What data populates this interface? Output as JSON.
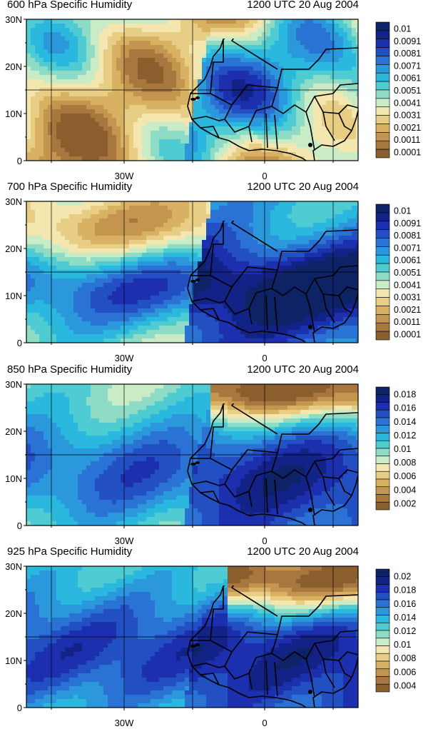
{
  "palette": [
    "#8b5e2e",
    "#a8773f",
    "#c4954f",
    "#d8b162",
    "#e8cd85",
    "#f3e6ae",
    "#c9ecc6",
    "#8fdcc6",
    "#4fccd2",
    "#2ab8df",
    "#2b98dc",
    "#2a72d3",
    "#2250c2",
    "#1c2fae",
    "#122286",
    "#0e2266"
  ],
  "axes": {
    "y_ticks": [
      "30N",
      "20N",
      "10N",
      "0"
    ],
    "x_ticks": [
      "30W",
      "0"
    ]
  },
  "panels": [
    {
      "title": "600 hPa Specific Humidity",
      "time": "1200 UTC 20 Aug 2004",
      "legend_labels": [
        "0.01",
        "0.0091",
        "0.0081",
        "0.0071",
        "0.0061",
        "0.0051",
        "0.0041",
        "0.0031",
        "0.0021",
        "0.0011",
        "0.0001"
      ],
      "legend_min": 0.0001,
      "legend_max": 0.01
    },
    {
      "title": "700 hPa Specific Humidity",
      "time": "1200 UTC 20 Aug 2004",
      "legend_labels": [
        "0.01",
        "0.0091",
        "0.0081",
        "0.0071",
        "0.0061",
        "0.0051",
        "0.0041",
        "0.0031",
        "0.0021",
        "0.0011",
        "0.0001"
      ],
      "legend_min": 0.0001,
      "legend_max": 0.01
    },
    {
      "title": "850 hPa Specific Humidity",
      "time": "1200 UTC 20 Aug 2004",
      "legend_labels": [
        "0.018",
        "0.016",
        "0.014",
        "0.012",
        "0.01",
        "0.008",
        "0.006",
        "0.004",
        "0.002"
      ],
      "legend_min": 0.002,
      "legend_max": 0.018
    },
    {
      "title": "925 hPa Specific Humidity",
      "time": "1200 UTC 20 Aug 2004",
      "legend_labels": [
        "0.02",
        "0.018",
        "0.016",
        "0.014",
        "0.012",
        "0.01",
        "0.008",
        "0.006",
        "0.004"
      ],
      "legend_min": 0.004,
      "legend_max": 0.02
    }
  ]
}
